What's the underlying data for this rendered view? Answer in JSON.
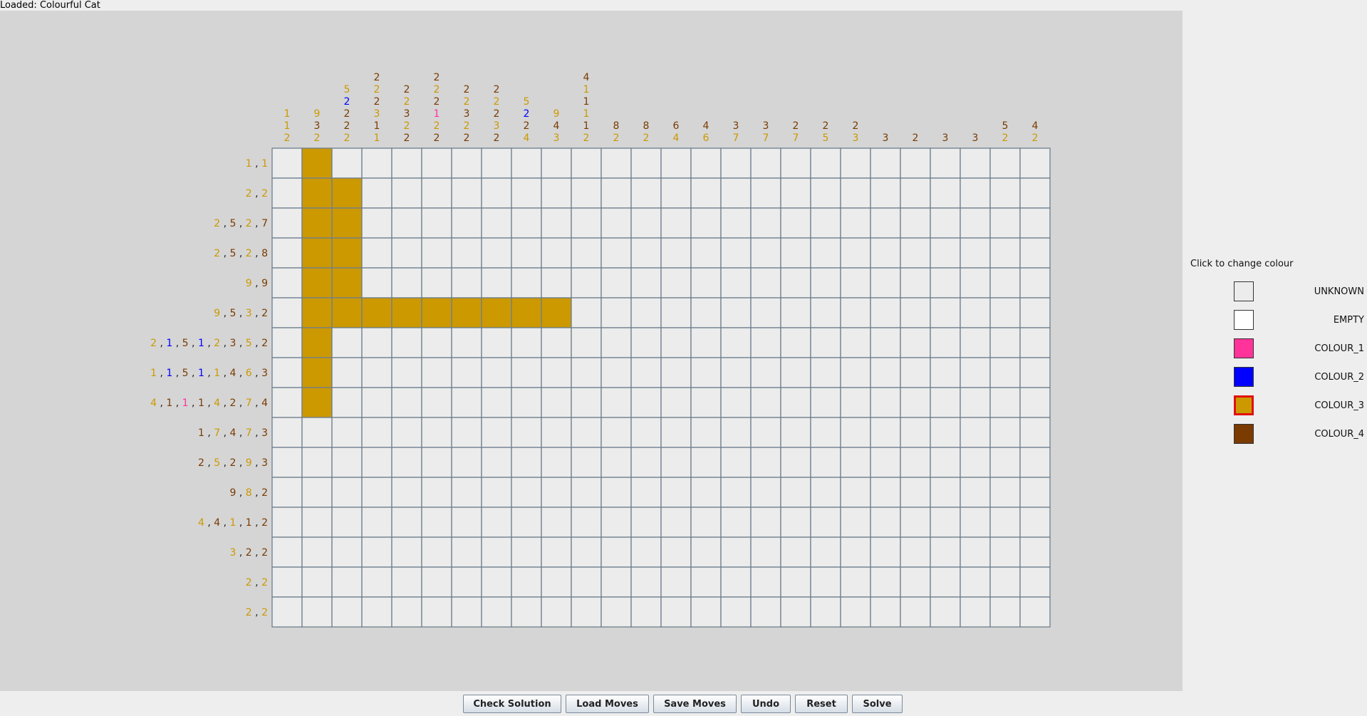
{
  "status": "Loaded: Colourful Cat",
  "colors": {
    "UNKNOWN": "#ececec",
    "EMPTY": "#ffffff",
    "COLOUR_1": "#ff3399",
    "COLOUR_2": "#0000ff",
    "COLOUR_3": "#cc9900",
    "COLOUR_4": "#7a3a00"
  },
  "clue_colors": {
    "3": "#cc9900",
    "4": "#7a3a00",
    "2": "#0000ff",
    "1": "#ff3399"
  },
  "palette": {
    "title": "Click to change colour",
    "selected": "COLOUR_3",
    "items": [
      {
        "key": "UNKNOWN",
        "label": "UNKNOWN"
      },
      {
        "key": "EMPTY",
        "label": "EMPTY"
      },
      {
        "key": "COLOUR_1",
        "label": "COLOUR_1"
      },
      {
        "key": "COLOUR_2",
        "label": "COLOUR_2"
      },
      {
        "key": "COLOUR_3",
        "label": "COLOUR_3"
      },
      {
        "key": "COLOUR_4",
        "label": "COLOUR_4"
      }
    ]
  },
  "buttons": {
    "check": "Check Solution",
    "load": "Load Moves",
    "save": "Save Moves",
    "undo": "Undo",
    "reset": "Reset",
    "solve": "Solve"
  },
  "puzzle": {
    "columns": 26,
    "rows": 16,
    "col_clues": [
      [
        [
          1,
          3
        ],
        [
          1,
          3
        ],
        [
          2,
          3
        ]
      ],
      [
        [
          9,
          3
        ],
        [
          3,
          4
        ],
        [
          2,
          3
        ]
      ],
      [
        [
          5,
          3
        ],
        [
          2,
          2
        ],
        [
          2,
          4
        ],
        [
          2,
          4
        ],
        [
          2,
          3
        ]
      ],
      [
        [
          2,
          4
        ],
        [
          2,
          3
        ],
        [
          2,
          4
        ],
        [
          3,
          3
        ],
        [
          1,
          4
        ],
        [
          1,
          3
        ]
      ],
      [
        [
          2,
          4
        ],
        [
          2,
          3
        ],
        [
          3,
          4
        ],
        [
          2,
          3
        ],
        [
          2,
          4
        ]
      ],
      [
        [
          2,
          4
        ],
        [
          2,
          3
        ],
        [
          2,
          4
        ],
        [
          1,
          1
        ],
        [
          2,
          3
        ],
        [
          2,
          4
        ]
      ],
      [
        [
          2,
          4
        ],
        [
          2,
          3
        ],
        [
          3,
          4
        ],
        [
          2,
          3
        ],
        [
          2,
          4
        ]
      ],
      [
        [
          2,
          4
        ],
        [
          2,
          3
        ],
        [
          2,
          4
        ],
        [
          3,
          3
        ],
        [
          2,
          4
        ]
      ],
      [
        [
          5,
          3
        ],
        [
          2,
          2
        ],
        [
          2,
          4
        ],
        [
          4,
          3
        ]
      ],
      [
        [
          9,
          3
        ],
        [
          4,
          4
        ],
        [
          3,
          3
        ]
      ],
      [
        [
          4,
          4
        ],
        [
          1,
          3
        ],
        [
          1,
          4
        ],
        [
          1,
          3
        ],
        [
          1,
          4
        ],
        [
          2,
          3
        ]
      ],
      [
        [
          8,
          4
        ],
        [
          2,
          3
        ]
      ],
      [
        [
          8,
          4
        ],
        [
          2,
          3
        ]
      ],
      [
        [
          6,
          4
        ],
        [
          4,
          3
        ]
      ],
      [
        [
          4,
          4
        ],
        [
          6,
          3
        ]
      ],
      [
        [
          3,
          4
        ],
        [
          7,
          3
        ]
      ],
      [
        [
          3,
          4
        ],
        [
          7,
          3
        ]
      ],
      [
        [
          2,
          4
        ],
        [
          7,
          3
        ]
      ],
      [
        [
          2,
          4
        ],
        [
          5,
          3
        ]
      ],
      [
        [
          2,
          4
        ],
        [
          3,
          3
        ]
      ],
      [
        [
          3,
          4
        ]
      ],
      [
        [
          2,
          4
        ]
      ],
      [
        [
          3,
          4
        ]
      ],
      [
        [
          3,
          4
        ]
      ],
      [
        [
          5,
          4
        ],
        [
          2,
          3
        ]
      ],
      [
        [
          4,
          4
        ],
        [
          2,
          3
        ]
      ]
    ],
    "row_clues": [
      [
        [
          1,
          3
        ],
        [
          1,
          3
        ]
      ],
      [
        [
          2,
          3
        ],
        [
          2,
          3
        ]
      ],
      [
        [
          2,
          3
        ],
        [
          5,
          4
        ],
        [
          2,
          3
        ],
        [
          7,
          4
        ]
      ],
      [
        [
          2,
          3
        ],
        [
          5,
          4
        ],
        [
          2,
          3
        ],
        [
          8,
          4
        ]
      ],
      [
        [
          9,
          3
        ],
        [
          9,
          4
        ]
      ],
      [
        [
          9,
          3
        ],
        [
          5,
          4
        ],
        [
          3,
          3
        ],
        [
          2,
          4
        ]
      ],
      [
        [
          2,
          3
        ],
        [
          1,
          2
        ],
        [
          5,
          4
        ],
        [
          1,
          2
        ],
        [
          2,
          3
        ],
        [
          3,
          4
        ],
        [
          5,
          3
        ],
        [
          2,
          4
        ]
      ],
      [
        [
          1,
          3
        ],
        [
          1,
          2
        ],
        [
          5,
          4
        ],
        [
          1,
          2
        ],
        [
          1,
          3
        ],
        [
          4,
          4
        ],
        [
          6,
          3
        ],
        [
          3,
          4
        ]
      ],
      [
        [
          4,
          3
        ],
        [
          1,
          4
        ],
        [
          1,
          1
        ],
        [
          1,
          4
        ],
        [
          4,
          3
        ],
        [
          2,
          4
        ],
        [
          7,
          3
        ],
        [
          4,
          4
        ]
      ],
      [
        [
          1,
          4
        ],
        [
          7,
          3
        ],
        [
          4,
          4
        ],
        [
          7,
          3
        ],
        [
          3,
          4
        ]
      ],
      [
        [
          2,
          4
        ],
        [
          5,
          3
        ],
        [
          2,
          4
        ],
        [
          9,
          3
        ],
        [
          3,
          4
        ]
      ],
      [
        [
          9,
          4
        ],
        [
          8,
          3
        ],
        [
          2,
          4
        ]
      ],
      [
        [
          4,
          3
        ],
        [
          4,
          4
        ],
        [
          1,
          3
        ],
        [
          1,
          4
        ],
        [
          2,
          4
        ]
      ],
      [
        [
          3,
          3
        ],
        [
          2,
          4
        ],
        [
          2,
          4
        ]
      ],
      [
        [
          2,
          3
        ],
        [
          2,
          3
        ]
      ],
      [
        [
          2,
          3
        ],
        [
          2,
          3
        ]
      ]
    ],
    "filled_cells": [
      [
        0,
        1
      ],
      [
        1,
        1
      ],
      [
        1,
        2
      ],
      [
        2,
        1
      ],
      [
        2,
        2
      ],
      [
        3,
        1
      ],
      [
        3,
        2
      ],
      [
        4,
        1
      ],
      [
        4,
        2
      ],
      [
        5,
        1
      ],
      [
        5,
        2
      ],
      [
        5,
        3
      ],
      [
        5,
        4
      ],
      [
        5,
        5
      ],
      [
        5,
        6
      ],
      [
        5,
        7
      ],
      [
        5,
        8
      ],
      [
        5,
        9
      ],
      [
        6,
        1
      ],
      [
        7,
        1
      ],
      [
        8,
        1
      ]
    ],
    "filled_color": "COLOUR_3"
  }
}
